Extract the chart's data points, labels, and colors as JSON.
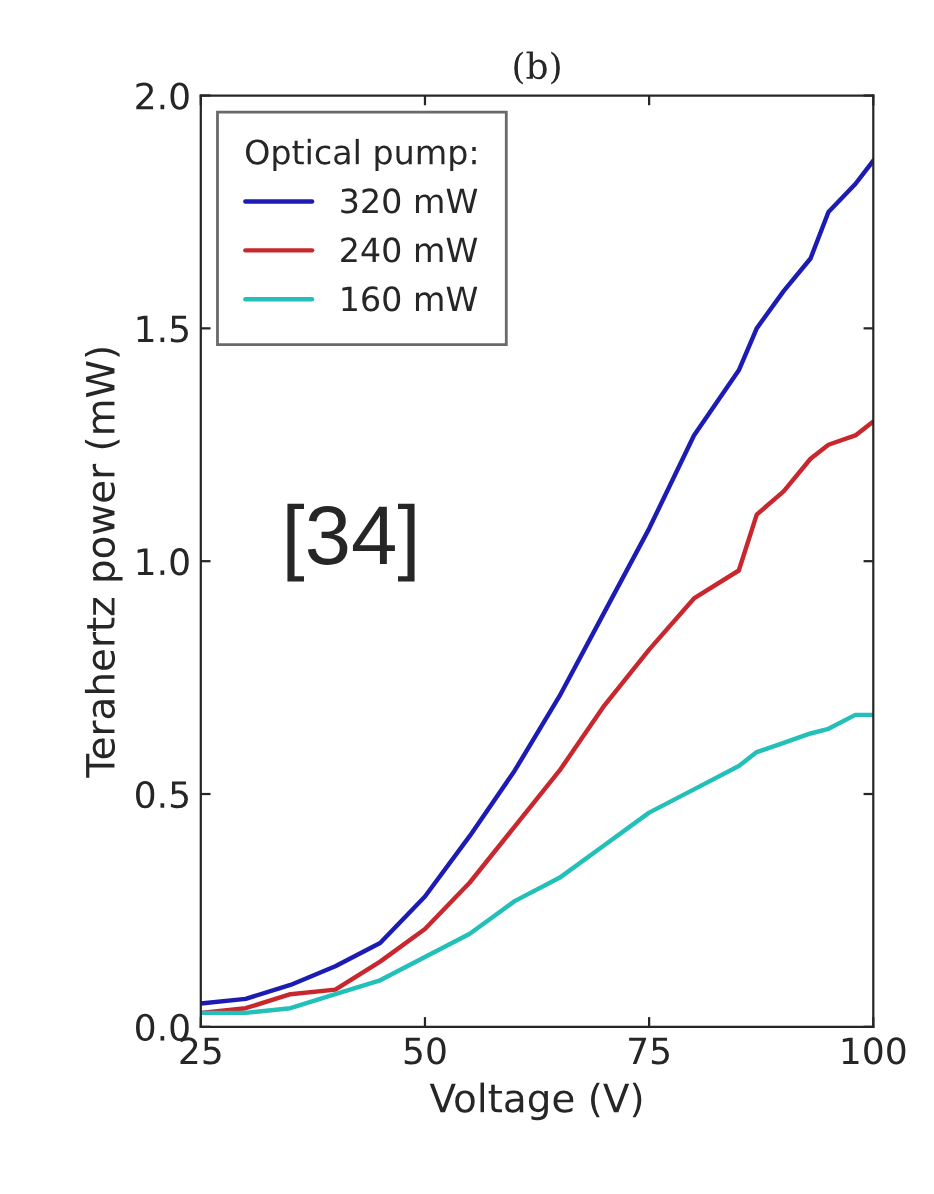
{
  "chart_data": {
    "type": "line",
    "title": "(b)",
    "xlabel": "Voltage (V)",
    "ylabel": "Terahertz power (mW)",
    "legend_title": "Optical pump:",
    "legend": "top left",
    "grid": false,
    "xlim": [
      25,
      100
    ],
    "xticks": [
      25,
      50,
      75,
      100
    ],
    "ylim": [
      0,
      2.0
    ],
    "yticks": [
      {
        "value": 0,
        "label": "0.0"
      },
      {
        "value": 0.5,
        "label": "0.5"
      },
      {
        "value": 1.0,
        "label": "1.0"
      },
      {
        "value": 1.5,
        "label": "1.5"
      },
      {
        "value": 2.0,
        "label": "2.0"
      }
    ],
    "x": [
      25,
      30,
      35,
      40,
      45,
      50,
      55,
      60,
      65,
      70,
      75,
      80,
      85,
      87,
      90,
      93,
      95,
      98,
      100
    ],
    "series": [
      {
        "name": "320 mW",
        "color": "#1c1cb4",
        "values": [
          0.05,
          0.06,
          0.09,
          0.13,
          0.18,
          0.28,
          0.41,
          0.55,
          0.71,
          0.89,
          1.07,
          1.27,
          1.41,
          1.5,
          1.58,
          1.65,
          1.75,
          1.81,
          1.86
        ]
      },
      {
        "name": "240 mW",
        "color": "#c8282d",
        "values": [
          0.03,
          0.04,
          0.07,
          0.08,
          0.14,
          0.21,
          0.31,
          0.43,
          0.55,
          0.69,
          0.81,
          0.92,
          0.98,
          1.1,
          1.15,
          1.22,
          1.25,
          1.27,
          1.3
        ]
      },
      {
        "name": "160 mW",
        "color": "#22c0b8",
        "values": [
          0.03,
          0.03,
          0.04,
          0.07,
          0.1,
          0.15,
          0.2,
          0.27,
          0.32,
          0.39,
          0.46,
          0.51,
          0.56,
          0.59,
          0.61,
          0.63,
          0.64,
          0.67,
          0.67
        ]
      }
    ],
    "annotations": [
      "[34]"
    ]
  }
}
